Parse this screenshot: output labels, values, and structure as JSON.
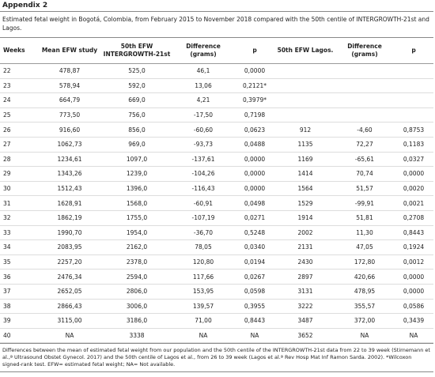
{
  "header": {
    "title": "Appendix 2",
    "caption": "Estimated fetal weight in Bogotá, Colombia, from February 2015 to November 2018 compared with the 50th centile of INTERGROWTH-21st and Lagos."
  },
  "table": {
    "columns": [
      "Weeks",
      "Mean EFW study",
      "50th EFW INTERGROWTH-21st",
      "Difference (grams)",
      "p",
      "50th EFW Lagos.",
      "Difference (grams)",
      "p"
    ],
    "rows": [
      [
        "22",
        "478,87",
        "525,0",
        "46,1",
        "0,0000",
        null,
        null,
        null
      ],
      [
        "23",
        "578,94",
        "592,0",
        "13,06",
        "0,2121*",
        null,
        null,
        null
      ],
      [
        "24",
        "664,79",
        "669,0",
        "4,21",
        "0,3979*",
        null,
        null,
        null
      ],
      [
        "25",
        "773,50",
        "756,0",
        "-17,50",
        "0,7198",
        null,
        null,
        null
      ],
      [
        "26",
        "916,60",
        "856,0",
        "-60,60",
        "0,0623",
        "912",
        "-4,60",
        "0,8753"
      ],
      [
        "27",
        "1062,73",
        "969,0",
        "-93,73",
        "0,0488",
        "1135",
        "72,27",
        "0,1183"
      ],
      [
        "28",
        "1234,61",
        "1097,0",
        "-137,61",
        "0,0000",
        "1169",
        "-65,61",
        "0,0327"
      ],
      [
        "29",
        "1343,26",
        "1239,0",
        "-104,26",
        "0,0000",
        "1414",
        "70,74",
        "0,0000"
      ],
      [
        "30",
        "1512,43",
        "1396,0",
        "-116,43",
        "0,0000",
        "1564",
        "51,57",
        "0,0020"
      ],
      [
        "31",
        "1628,91",
        "1568,0",
        "-60,91",
        "0,0498",
        "1529",
        "-99,91",
        "0,0021"
      ],
      [
        "32",
        "1862,19",
        "1755,0",
        "-107,19",
        "0,0271",
        "1914",
        "51,81",
        "0,2708"
      ],
      [
        "33",
        "1990,70",
        "1954,0",
        "-36,70",
        "0,5248",
        "2002",
        "11,30",
        "0,8443"
      ],
      [
        "34",
        "2083,95",
        "2162,0",
        "78,05",
        "0,0340",
        "2131",
        "47,05",
        "0,1924"
      ],
      [
        "35",
        "2257,20",
        "2378,0",
        "120,80",
        "0,0194",
        "2430",
        "172,80",
        "0,0012"
      ],
      [
        "36",
        "2476,34",
        "2594,0",
        "117,66",
        "0,0267",
        "2897",
        "420,66",
        "0,0000"
      ],
      [
        "37",
        "2652,05",
        "2806,0",
        "153,95",
        "0,0598",
        "3131",
        "478,95",
        "0,0000"
      ],
      [
        "38",
        "2866,43",
        "3006,0",
        "139,57",
        "0,3955",
        "3222",
        "355,57",
        "0,0586"
      ],
      [
        "39",
        "3115,00",
        "3186,0",
        "71,00",
        "0,8443",
        "3487",
        "372,00",
        "0,3439"
      ],
      [
        "40",
        "NA",
        "3338",
        "NA",
        "NA",
        "3652",
        "NA",
        "NA"
      ]
    ]
  },
  "footer": {
    "note": "Differences between the mean of estimated fetal weight from our population and the 50th centile of the INTERGROWTH-21st data from 22 to 39 week (Stirnemann et al.,ª Ultrasound Obstet Gynecol. 2017) and the 50th centile of Lagos et al., from 26 to 39 week (Lagos et al.ª Rev Hosp Mat Inf Ramon Sarda. 2002). *Wilcoxon signed-rank test. EFW= estimated fetal weight; NA= Not available."
  }
}
